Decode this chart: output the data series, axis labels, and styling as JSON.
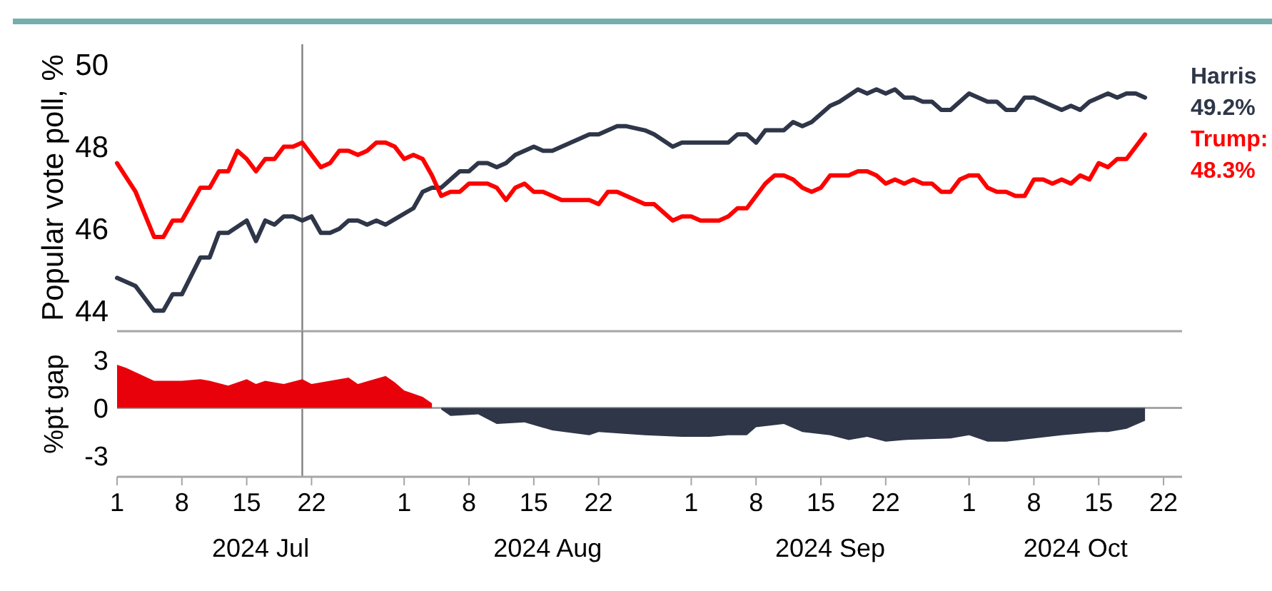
{
  "chart_data": [
    {
      "type": "line",
      "ylabel": "Popular vote poll, %",
      "xlim": [
        "2024-07-01",
        "2024-10-24"
      ],
      "ylim": [
        43.5,
        50.5
      ],
      "yticks": [
        44,
        46,
        48,
        50
      ],
      "tick_labels": "y",
      "grid": false,
      "line_style": "solid",
      "marker": "none",
      "ref_lines": [
        {
          "axis": "x",
          "value": "2024-07-21",
          "color": "#808080"
        }
      ],
      "annotations": [
        "49.2%",
        "48.3%"
      ],
      "series": [
        {
          "name": "Harris",
          "color": "#2e3648",
          "x": [
            "2024-07-01",
            "2024-07-03",
            "2024-07-05",
            "2024-07-06",
            "2024-07-07",
            "2024-07-08",
            "2024-07-10",
            "2024-07-11",
            "2024-07-12",
            "2024-07-13",
            "2024-07-15",
            "2024-07-16",
            "2024-07-17",
            "2024-07-18",
            "2024-07-19",
            "2024-07-20",
            "2024-07-21",
            "2024-07-22",
            "2024-07-23",
            "2024-07-24",
            "2024-07-25",
            "2024-07-26",
            "2024-07-27",
            "2024-07-28",
            "2024-07-29",
            "2024-07-30",
            "2024-08-02",
            "2024-08-03",
            "2024-08-04",
            "2024-08-05",
            "2024-08-07",
            "2024-08-08",
            "2024-08-09",
            "2024-08-10",
            "2024-08-11",
            "2024-08-12",
            "2024-08-13",
            "2024-08-15",
            "2024-08-16",
            "2024-08-17",
            "2024-08-19",
            "2024-08-21",
            "2024-08-22",
            "2024-08-24",
            "2024-08-25",
            "2024-08-27",
            "2024-08-28",
            "2024-08-30",
            "2024-08-31",
            "2024-09-05",
            "2024-09-06",
            "2024-09-07",
            "2024-09-08",
            "2024-09-09",
            "2024-09-10",
            "2024-09-11",
            "2024-09-12",
            "2024-09-13",
            "2024-09-14",
            "2024-09-16",
            "2024-09-17",
            "2024-09-19",
            "2024-09-20",
            "2024-09-21",
            "2024-09-22",
            "2024-09-23",
            "2024-09-24",
            "2024-09-25",
            "2024-09-26",
            "2024-09-27",
            "2024-09-28",
            "2024-09-29",
            "2024-09-30",
            "2024-10-01",
            "2024-10-03",
            "2024-10-04",
            "2024-10-05",
            "2024-10-06",
            "2024-10-07",
            "2024-10-08",
            "2024-10-09",
            "2024-10-11",
            "2024-10-12",
            "2024-10-13",
            "2024-10-14",
            "2024-10-15",
            "2024-10-16",
            "2024-10-17",
            "2024-10-18",
            "2024-10-19",
            "2024-10-20"
          ],
          "values": [
            44.8,
            44.6,
            44.0,
            44.0,
            44.4,
            44.4,
            45.3,
            45.3,
            45.9,
            45.9,
            46.2,
            45.7,
            46.2,
            46.1,
            46.3,
            46.3,
            46.2,
            46.3,
            45.9,
            45.9,
            46.0,
            46.2,
            46.2,
            46.1,
            46.2,
            46.1,
            46.5,
            46.9,
            47.0,
            47.0,
            47.4,
            47.4,
            47.6,
            47.6,
            47.5,
            47.6,
            47.8,
            48.0,
            47.9,
            47.9,
            48.1,
            48.3,
            48.3,
            48.5,
            48.5,
            48.4,
            48.3,
            48.0,
            48.1,
            48.1,
            48.3,
            48.3,
            48.1,
            48.4,
            48.4,
            48.4,
            48.6,
            48.5,
            48.6,
            49.0,
            49.1,
            49.4,
            49.3,
            49.4,
            49.3,
            49.4,
            49.2,
            49.2,
            49.1,
            49.1,
            48.9,
            48.9,
            49.1,
            49.3,
            49.1,
            49.1,
            48.9,
            48.9,
            49.2,
            49.2,
            49.1,
            48.9,
            49.0,
            48.9,
            49.1,
            49.2,
            49.3,
            49.2,
            49.3,
            49.3,
            49.2
          ]
        },
        {
          "name": "Trump:",
          "color": "#ff0000",
          "x": [
            "2024-07-01",
            "2024-07-03",
            "2024-07-05",
            "2024-07-06",
            "2024-07-07",
            "2024-07-08",
            "2024-07-10",
            "2024-07-11",
            "2024-07-12",
            "2024-07-13",
            "2024-07-14",
            "2024-07-15",
            "2024-07-16",
            "2024-07-17",
            "2024-07-18",
            "2024-07-19",
            "2024-07-20",
            "2024-07-21",
            "2024-07-23",
            "2024-07-24",
            "2024-07-25",
            "2024-07-26",
            "2024-07-27",
            "2024-07-28",
            "2024-07-29",
            "2024-07-30",
            "2024-07-31",
            "2024-08-01",
            "2024-08-02",
            "2024-08-03",
            "2024-08-04",
            "2024-08-05",
            "2024-08-06",
            "2024-08-07",
            "2024-08-08",
            "2024-08-10",
            "2024-08-11",
            "2024-08-12",
            "2024-08-13",
            "2024-08-14",
            "2024-08-15",
            "2024-08-16",
            "2024-08-18",
            "2024-08-20",
            "2024-08-21",
            "2024-08-22",
            "2024-08-23",
            "2024-08-24",
            "2024-08-26",
            "2024-08-27",
            "2024-08-28",
            "2024-08-30",
            "2024-08-31",
            "2024-09-01",
            "2024-09-02",
            "2024-09-04",
            "2024-09-05",
            "2024-09-06",
            "2024-09-07",
            "2024-09-08",
            "2024-09-09",
            "2024-09-10",
            "2024-09-11",
            "2024-09-12",
            "2024-09-13",
            "2024-09-14",
            "2024-09-15",
            "2024-09-16",
            "2024-09-18",
            "2024-09-19",
            "2024-09-20",
            "2024-09-21",
            "2024-09-22",
            "2024-09-23",
            "2024-09-24",
            "2024-09-25",
            "2024-09-26",
            "2024-09-27",
            "2024-09-28",
            "2024-09-29",
            "2024-09-30",
            "2024-10-01",
            "2024-10-02",
            "2024-10-03",
            "2024-10-04",
            "2024-10-05",
            "2024-10-06",
            "2024-10-07",
            "2024-10-08",
            "2024-10-09",
            "2024-10-10",
            "2024-10-11",
            "2024-10-12",
            "2024-10-13",
            "2024-10-14",
            "2024-10-15",
            "2024-10-16",
            "2024-10-17",
            "2024-10-18",
            "2024-10-20"
          ],
          "values": [
            47.6,
            46.9,
            45.8,
            45.8,
            46.2,
            46.2,
            47.0,
            47.0,
            47.4,
            47.4,
            47.9,
            47.7,
            47.4,
            47.7,
            47.7,
            48.0,
            48.0,
            48.1,
            47.5,
            47.6,
            47.9,
            47.9,
            47.8,
            47.9,
            48.1,
            48.1,
            48.0,
            47.7,
            47.8,
            47.7,
            47.3,
            46.8,
            46.9,
            46.9,
            47.1,
            47.1,
            47.0,
            46.7,
            47.0,
            47.1,
            46.9,
            46.9,
            46.7,
            46.7,
            46.7,
            46.6,
            46.9,
            46.9,
            46.7,
            46.6,
            46.6,
            46.2,
            46.3,
            46.3,
            46.2,
            46.2,
            46.3,
            46.5,
            46.5,
            46.8,
            47.1,
            47.3,
            47.3,
            47.2,
            47.0,
            46.9,
            47.0,
            47.3,
            47.3,
            47.4,
            47.4,
            47.3,
            47.1,
            47.2,
            47.1,
            47.2,
            47.1,
            47.1,
            46.9,
            46.9,
            47.2,
            47.3,
            47.3,
            47.0,
            46.9,
            46.9,
            46.8,
            46.8,
            47.2,
            47.2,
            47.1,
            47.2,
            47.1,
            47.3,
            47.2,
            47.6,
            47.5,
            47.7,
            47.7,
            48.3
          ]
        }
      ]
    },
    {
      "type": "area",
      "ylabel": "%pt gap",
      "xlim": [
        "2024-07-01",
        "2024-10-24"
      ],
      "ylim": [
        -4.3,
        4.8
      ],
      "yticks": [
        -3,
        0,
        3
      ],
      "grid": false,
      "xticks": [
        {
          "value": "2024-07-01",
          "label": "1"
        },
        {
          "value": "2024-07-08",
          "label": "8"
        },
        {
          "value": "2024-07-15",
          "label": "15"
        },
        {
          "value": "2024-07-22",
          "label": "22"
        },
        {
          "value": "2024-08-01",
          "label": "1"
        },
        {
          "value": "2024-08-08",
          "label": "8"
        },
        {
          "value": "2024-08-15",
          "label": "15"
        },
        {
          "value": "2024-08-22",
          "label": "22"
        },
        {
          "value": "2024-09-01",
          "label": "1"
        },
        {
          "value": "2024-09-08",
          "label": "8"
        },
        {
          "value": "2024-09-15",
          "label": "15"
        },
        {
          "value": "2024-09-22",
          "label": "22"
        },
        {
          "value": "2024-10-01",
          "label": "1"
        },
        {
          "value": "2024-10-08",
          "label": "8"
        },
        {
          "value": "2024-10-15",
          "label": "15"
        },
        {
          "value": "2024-10-22",
          "label": "22"
        }
      ],
      "ref_lines": [
        {
          "axis": "x",
          "value": "2024-07-21",
          "color": "#808080"
        },
        {
          "axis": "y",
          "value": 0,
          "color": "#a6a6a6"
        }
      ],
      "annotations": [
        "2024 Jul",
        "2024 Aug",
        "2024 Sep",
        "2024 Oct"
      ],
      "series": [
        {
          "color": "#e8000b",
          "x": [
            "2024-07-01",
            "2024-07-02",
            "2024-07-05",
            "2024-07-08",
            "2024-07-10",
            "2024-07-11",
            "2024-07-13",
            "2024-07-15",
            "2024-07-16",
            "2024-07-17",
            "2024-07-19",
            "2024-07-21",
            "2024-07-22",
            "2024-07-26",
            "2024-07-27",
            "2024-07-30",
            "2024-07-31",
            "2024-08-01",
            "2024-08-03",
            "2024-08-04"
          ],
          "values": [
            2.7,
            2.5,
            1.7,
            1.7,
            1.8,
            1.7,
            1.4,
            1.8,
            1.5,
            1.7,
            1.5,
            1.8,
            1.5,
            1.9,
            1.5,
            2.0,
            1.6,
            1.1,
            0.7,
            0.3
          ]
        },
        {
          "color": "#2e3648",
          "x": [
            "2024-08-05",
            "2024-08-06",
            "2024-08-09",
            "2024-08-11",
            "2024-08-14",
            "2024-08-17",
            "2024-08-21",
            "2024-08-22",
            "2024-08-27",
            "2024-08-31",
            "2024-09-03",
            "2024-09-05",
            "2024-09-07",
            "2024-09-08",
            "2024-09-11",
            "2024-09-13",
            "2024-09-16",
            "2024-09-18",
            "2024-09-20",
            "2024-09-22",
            "2024-09-24",
            "2024-09-29",
            "2024-10-01",
            "2024-10-03",
            "2024-10-05",
            "2024-10-08",
            "2024-10-11",
            "2024-10-13",
            "2024-10-15",
            "2024-10-16",
            "2024-10-18",
            "2024-10-20"
          ],
          "values": [
            -0.1,
            -0.5,
            -0.4,
            -1.0,
            -0.9,
            -1.4,
            -1.7,
            -1.5,
            -1.7,
            -1.8,
            -1.8,
            -1.7,
            -1.7,
            -1.2,
            -1.0,
            -1.5,
            -1.7,
            -2.0,
            -1.8,
            -2.1,
            -2.0,
            -1.9,
            -1.7,
            -2.1,
            -2.1,
            -1.9,
            -1.7,
            -1.6,
            -1.5,
            -1.5,
            -1.3,
            -0.8
          ]
        }
      ]
    }
  ]
}
